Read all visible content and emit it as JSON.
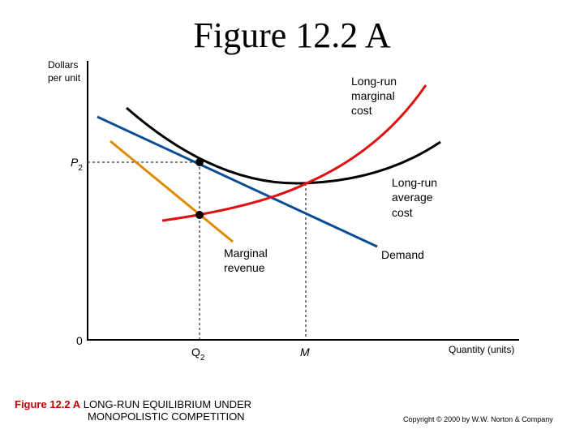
{
  "title": "Figure 12.2 A",
  "y_axis_label_1": "Dollars",
  "y_axis_label_2": "per unit",
  "x_axis_label": "Quantity (units)",
  "origin_label": "0",
  "price_label": "P",
  "price_sub": "2",
  "q_label": "Q",
  "q_sub": "2",
  "m_label": "M",
  "curves": {
    "lrmc": [
      "Long-run",
      "marginal",
      "cost"
    ],
    "lrac": [
      "Long-run",
      "average",
      "cost"
    ],
    "demand": "Demand",
    "mr": [
      "Marginal",
      "revenue"
    ]
  },
  "colors": {
    "demand": "#0a4d96",
    "lrac": "#000000",
    "lrmc": "#e01010",
    "mr": "#e08a00"
  },
  "caption": {
    "number": "Figure 12.2 A",
    "line1": " LONG-RUN EQUILIBRIUM UNDER",
    "line2": "MONOPOLISTIC COMPETITION"
  },
  "copyright": "Copyright © 2000 by W.W. Norton & Company"
}
